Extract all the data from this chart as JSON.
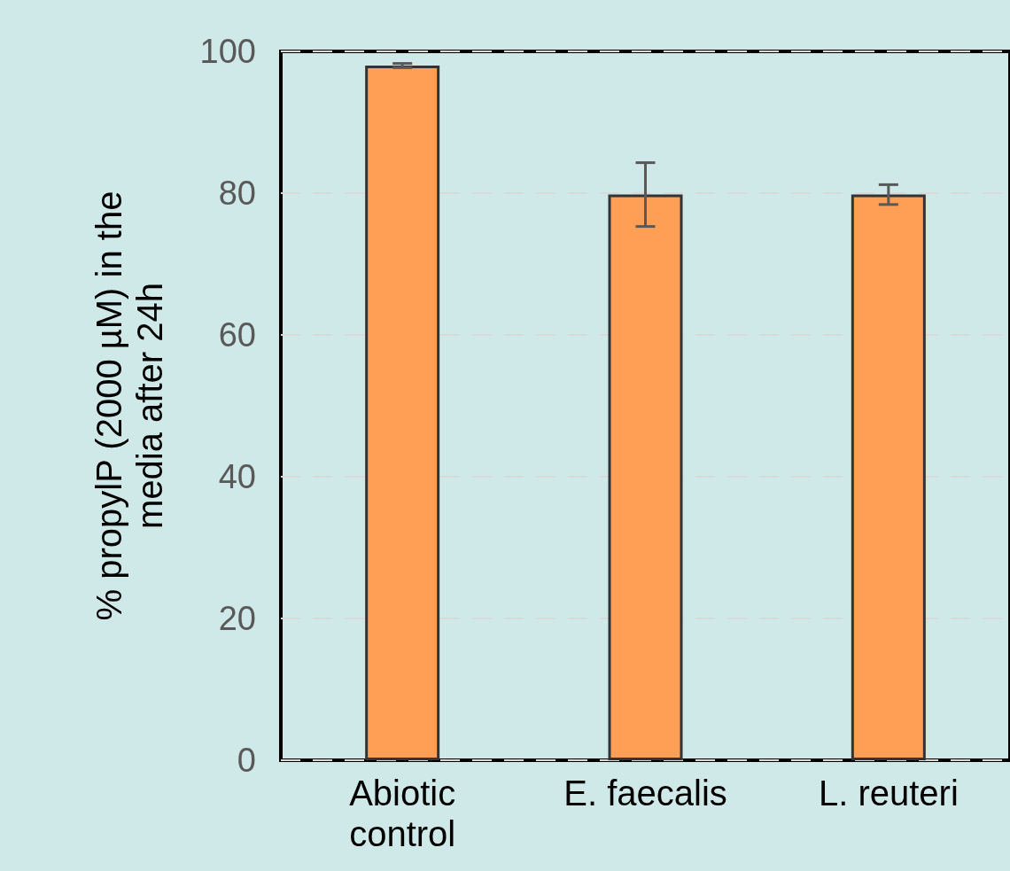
{
  "chart_data": {
    "type": "bar",
    "ylabel": "% propylP (2000 µM) in the\nmedia after 24h",
    "categories": [
      "Abiotic\ncontrol",
      "E. faecalis",
      "L. reuteri"
    ],
    "values": [
      98,
      79.8,
      79.8
    ],
    "errors": [
      0.3,
      4.5,
      1.4
    ],
    "color": "#ff9f55",
    "ylim": [
      0,
      100
    ],
    "yticks": [
      0,
      20,
      40,
      60,
      80,
      100
    ],
    "grid": "y"
  }
}
